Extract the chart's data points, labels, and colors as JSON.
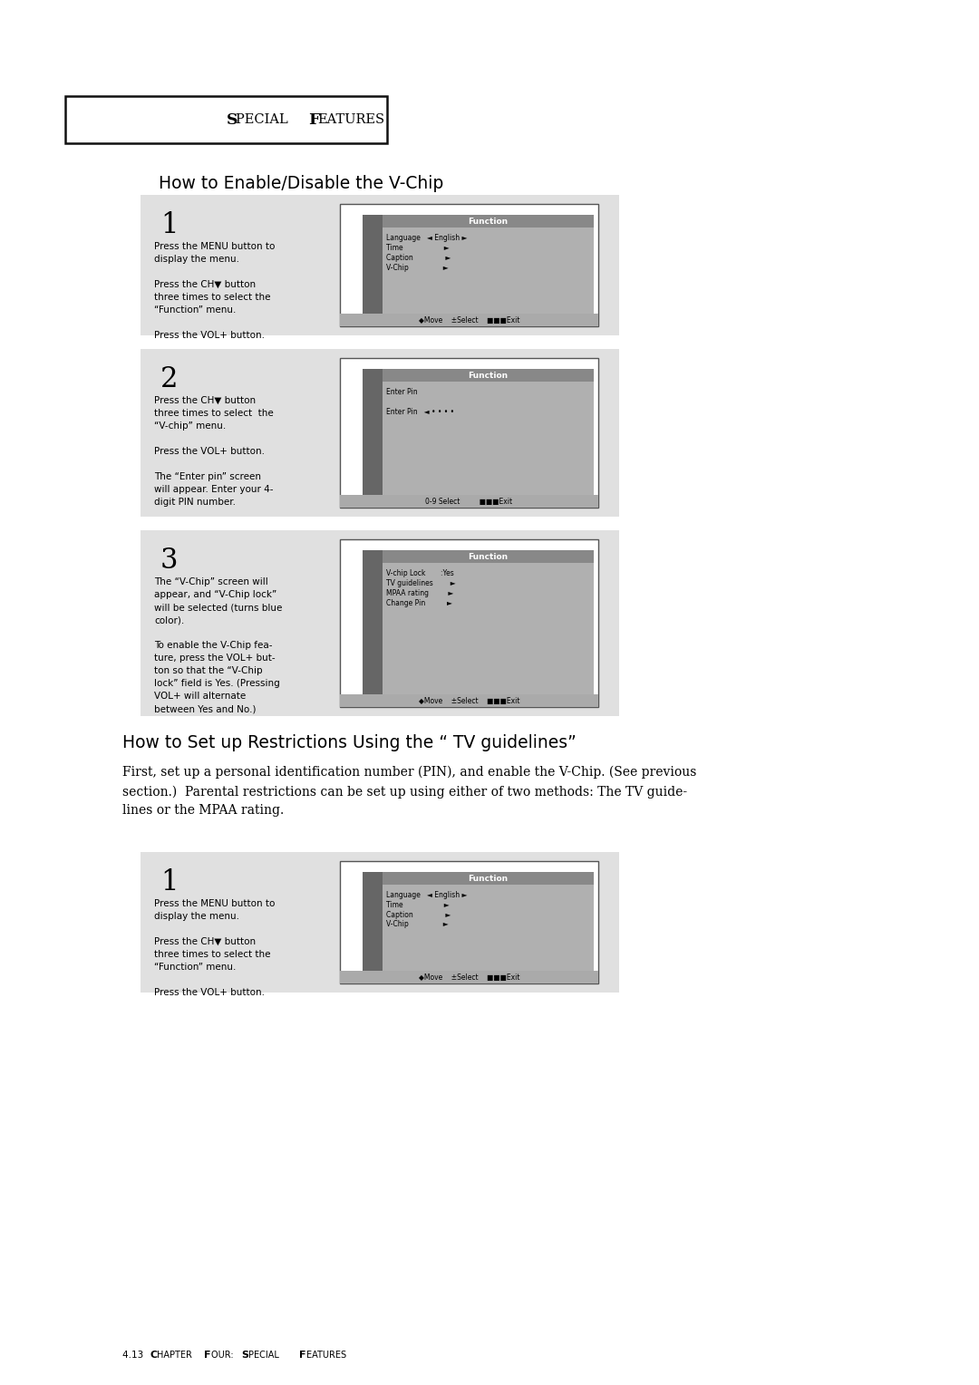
{
  "bg_color": "#ffffff",
  "page_bg": "#ffffff",
  "header_box_color": "#000000",
  "header_text": "S",
  "header_text_full": "PECIAL ",
  "header_text2": "F",
  "header_text_full2": "EATURES",
  "section1_title": "How to Enable/Disable the V-Chip",
  "section2_title": "How to Set up Restrictions Using the “ TV guidelines”",
  "section2_body": "First, set up a personal identification number (PIN), and enable the V-Chip. (See previous\nsection.)  Parental restrictions can be set up using either of two methods: The TV guide-\nlines or the MPAA rating.",
  "footer_text": "4.13  C",
  "footer_text2": "HAPTER ",
  "footer_text3": "F",
  "footer_text4": "OUR: ",
  "footer_text5": "S",
  "footer_text6": "PECIAL ",
  "footer_text7": "F",
  "footer_text8": "EATURES",
  "step_bg": "#e8e8e8",
  "screen_bg": "#c8c8c8",
  "screen_header_bg": "#888888",
  "step_boxes": [
    {
      "step_num": "1",
      "left_text": "Press the MENU button to\ndisplay the menu.\n\nPress the CH▼ button\nthree times to select the\n“Function” menu.\n\nPress the VOL+ button.",
      "screen_title": "Function",
      "screen_items": [
        "Language   ◄ English ►",
        "Time                   ►",
        "Caption               ►",
        "V-Chip                ►"
      ],
      "screen_bottom": "◆Move    ±Select    ■■■Exit"
    },
    {
      "step_num": "2",
      "left_text": "Press the CH▼ button\nthree times to select  the\n“V-chip” menu.\n\nPress the VOL+ button.\n\nThe “Enter pin” screen\nwill appear. Enter your 4-\ndigit PIN number.",
      "screen_title": "Function",
      "screen_items": [
        "Enter Pin",
        "",
        "Enter Pin   ◄ • • • •"
      ],
      "screen_bottom": "0-9 Select         ■■■Exit"
    },
    {
      "step_num": "3",
      "left_text": "The “V-Chip” screen will\nappear, and “V-Chip lock”\nwill be selected (turns blue\ncolor).\n\nTo enable the V-Chip fea-\nture, press the VOL+ but-\nton so that the “V-Chip\nlock” field is Yes. (Pressing\nVOL+ will alternate\nbetween Yes and No.)",
      "screen_title": "Function",
      "screen_items": [
        "V-chip Lock       :Yes",
        "TV guidelines        ►",
        "MPAA rating         ►",
        "Change Pin          ►"
      ],
      "screen_bottom": "◆Move    ±Select    ■■■Exit"
    }
  ],
  "step4": {
    "step_num": "1",
    "left_text": "Press the MENU button to\ndisplay the menu.\n\nPress the CH▼ button\nthree times to select the\n“Function” menu.\n\nPress the VOL+ button.",
    "screen_title": "Function",
    "screen_items": [
      "Language   ◄ English ►",
      "Time                   ►",
      "Caption               ►",
      "V-Chip                ►"
    ],
    "screen_bottom": "◆Move    ±Select    ■■■Exit"
  }
}
